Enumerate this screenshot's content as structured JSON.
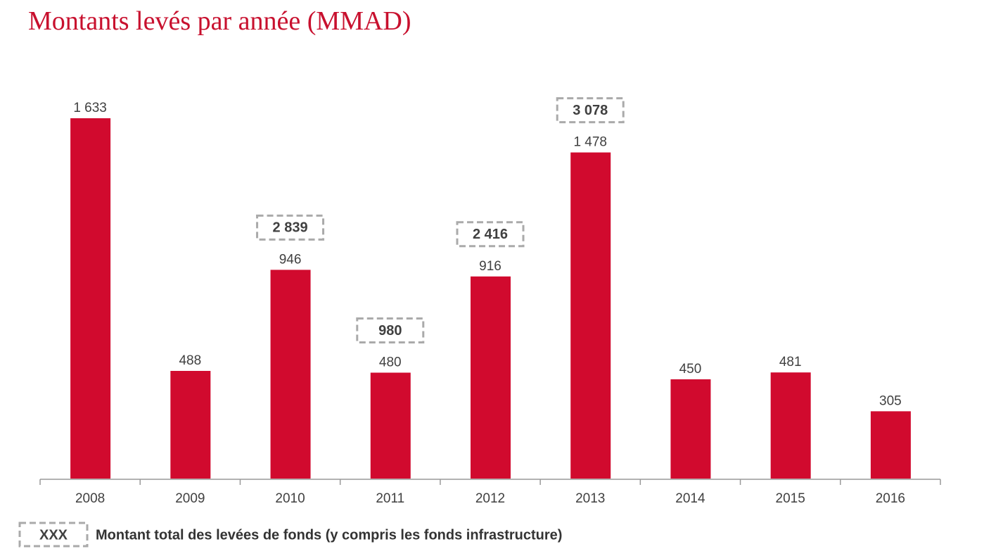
{
  "chart_data": {
    "type": "bar",
    "title": "Montants levés par année (MMAD)",
    "categories": [
      "2008",
      "2009",
      "2010",
      "2011",
      "2012",
      "2013",
      "2014",
      "2015",
      "2016"
    ],
    "values": [
      1633,
      488,
      946,
      480,
      916,
      1478,
      450,
      481,
      305
    ],
    "value_labels": [
      "1 633",
      "488",
      "946",
      "480",
      "916",
      "1 478",
      "450",
      "481",
      "305"
    ],
    "totals": [
      null,
      null,
      2839,
      980,
      2416,
      3078,
      null,
      null,
      null
    ],
    "total_labels": [
      null,
      null,
      "2 839",
      "980",
      "2 416",
      "3 078",
      null,
      null,
      null
    ],
    "color": "#d10a2e",
    "legend": {
      "symbol": "XXX",
      "text": "Montant total des levées de fonds (y compris les fonds infrastructure)"
    }
  }
}
